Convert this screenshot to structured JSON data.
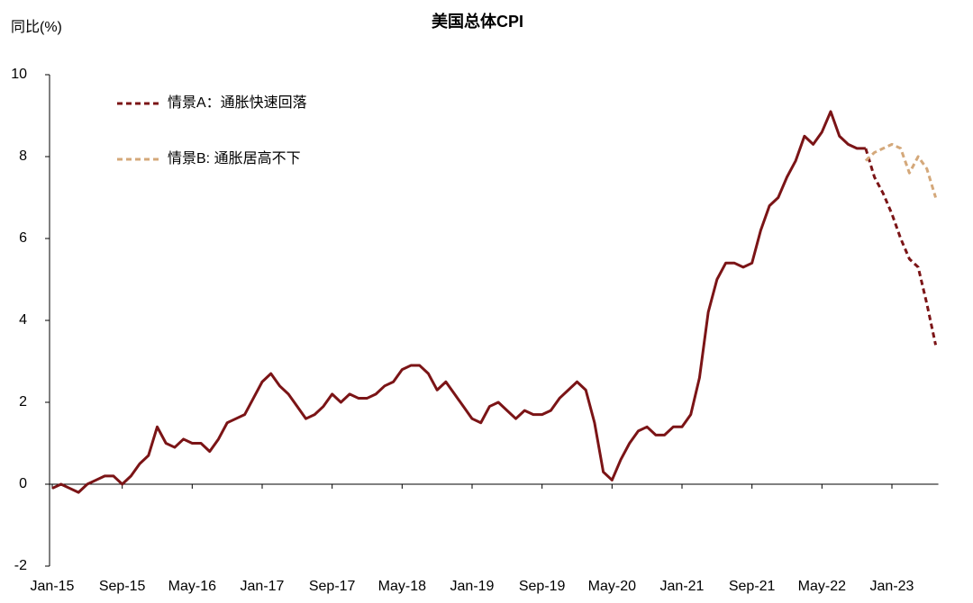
{
  "chart_data": {
    "type": "line",
    "title": "美国总体CPI",
    "y_label": "同比(%)",
    "categories": [
      "Jan-15",
      null,
      null,
      null,
      null,
      null,
      null,
      null,
      "Sep-15",
      null,
      null,
      null,
      null,
      null,
      null,
      null,
      "May-16",
      null,
      null,
      null,
      null,
      null,
      null,
      null,
      "Jan-17",
      null,
      null,
      null,
      null,
      null,
      null,
      null,
      "Sep-17",
      null,
      null,
      null,
      null,
      null,
      null,
      null,
      "May-18",
      null,
      null,
      null,
      null,
      null,
      null,
      null,
      "Jan-19",
      null,
      null,
      null,
      null,
      null,
      null,
      null,
      "Sep-19",
      null,
      null,
      null,
      null,
      null,
      null,
      null,
      "May-20",
      null,
      null,
      null,
      null,
      null,
      null,
      null,
      "Jan-21",
      null,
      null,
      null,
      null,
      null,
      null,
      null,
      "Sep-21",
      null,
      null,
      null,
      null,
      null,
      null,
      null,
      "May-22",
      null,
      null,
      null,
      null,
      null,
      null,
      null,
      "Jan-23",
      null,
      null,
      null,
      null,
      null
    ],
    "series": [
      {
        "color": "#7b1416",
        "dashed": false,
        "values": [
          -0.1,
          0.0,
          -0.1,
          -0.2,
          0.0,
          0.1,
          0.2,
          0.2,
          0.0,
          0.2,
          0.5,
          0.7,
          1.4,
          1.0,
          0.9,
          1.1,
          1.0,
          1.0,
          0.8,
          1.1,
          1.5,
          1.6,
          1.7,
          2.1,
          2.5,
          2.7,
          2.4,
          2.2,
          1.9,
          1.6,
          1.7,
          1.9,
          2.2,
          2.0,
          2.2,
          2.1,
          2.1,
          2.2,
          2.4,
          2.5,
          2.8,
          2.9,
          2.9,
          2.7,
          2.3,
          2.5,
          2.2,
          1.9,
          1.6,
          1.5,
          1.9,
          2.0,
          1.8,
          1.6,
          1.8,
          1.7,
          1.7,
          1.8,
          2.1,
          2.3,
          2.5,
          2.3,
          1.5,
          0.3,
          0.1,
          0.6,
          1.0,
          1.3,
          1.4,
          1.2,
          1.2,
          1.4,
          1.4,
          1.7,
          2.6,
          4.2,
          5.0,
          5.4,
          5.4,
          5.3,
          5.4,
          6.2,
          6.8,
          7.0,
          7.5,
          7.9,
          8.5,
          8.3,
          8.6,
          9.1,
          8.5,
          8.3,
          8.2,
          8.2,
          null,
          null,
          null,
          null,
          null,
          null,
          null,
          null
        ]
      },
      {
        "name": "情景A：通胀快速回落",
        "color": "#7b1416",
        "dashed": true,
        "values": [
          null,
          null,
          null,
          null,
          null,
          null,
          null,
          null,
          null,
          null,
          null,
          null,
          null,
          null,
          null,
          null,
          null,
          null,
          null,
          null,
          null,
          null,
          null,
          null,
          null,
          null,
          null,
          null,
          null,
          null,
          null,
          null,
          null,
          null,
          null,
          null,
          null,
          null,
          null,
          null,
          null,
          null,
          null,
          null,
          null,
          null,
          null,
          null,
          null,
          null,
          null,
          null,
          null,
          null,
          null,
          null,
          null,
          null,
          null,
          null,
          null,
          null,
          null,
          null,
          null,
          null,
          null,
          null,
          null,
          null,
          null,
          null,
          null,
          null,
          null,
          null,
          null,
          null,
          null,
          null,
          null,
          null,
          null,
          null,
          null,
          null,
          null,
          null,
          null,
          null,
          null,
          null,
          null,
          8.2,
          7.5,
          7.1,
          6.6,
          6.0,
          5.5,
          5.3,
          4.4,
          3.4
        ]
      },
      {
        "name": "情景B: 通胀居高不下",
        "color": "#d4a87a",
        "dashed": true,
        "values": [
          null,
          null,
          null,
          null,
          null,
          null,
          null,
          null,
          null,
          null,
          null,
          null,
          null,
          null,
          null,
          null,
          null,
          null,
          null,
          null,
          null,
          null,
          null,
          null,
          null,
          null,
          null,
          null,
          null,
          null,
          null,
          null,
          null,
          null,
          null,
          null,
          null,
          null,
          null,
          null,
          null,
          null,
          null,
          null,
          null,
          null,
          null,
          null,
          null,
          null,
          null,
          null,
          null,
          null,
          null,
          null,
          null,
          null,
          null,
          null,
          null,
          null,
          null,
          null,
          null,
          null,
          null,
          null,
          null,
          null,
          null,
          null,
          null,
          null,
          null,
          null,
          null,
          null,
          null,
          null,
          null,
          null,
          null,
          null,
          null,
          null,
          null,
          null,
          null,
          null,
          null,
          null,
          null,
          7.9,
          8.1,
          8.2,
          8.3,
          8.2,
          7.6,
          8.0,
          7.7,
          7.0
        ]
      }
    ],
    "ylim": [
      -2,
      10
    ],
    "yticks": [
      -2,
      0,
      2,
      4,
      6,
      8,
      10
    ],
    "grid": false,
    "legend": "upper left"
  }
}
